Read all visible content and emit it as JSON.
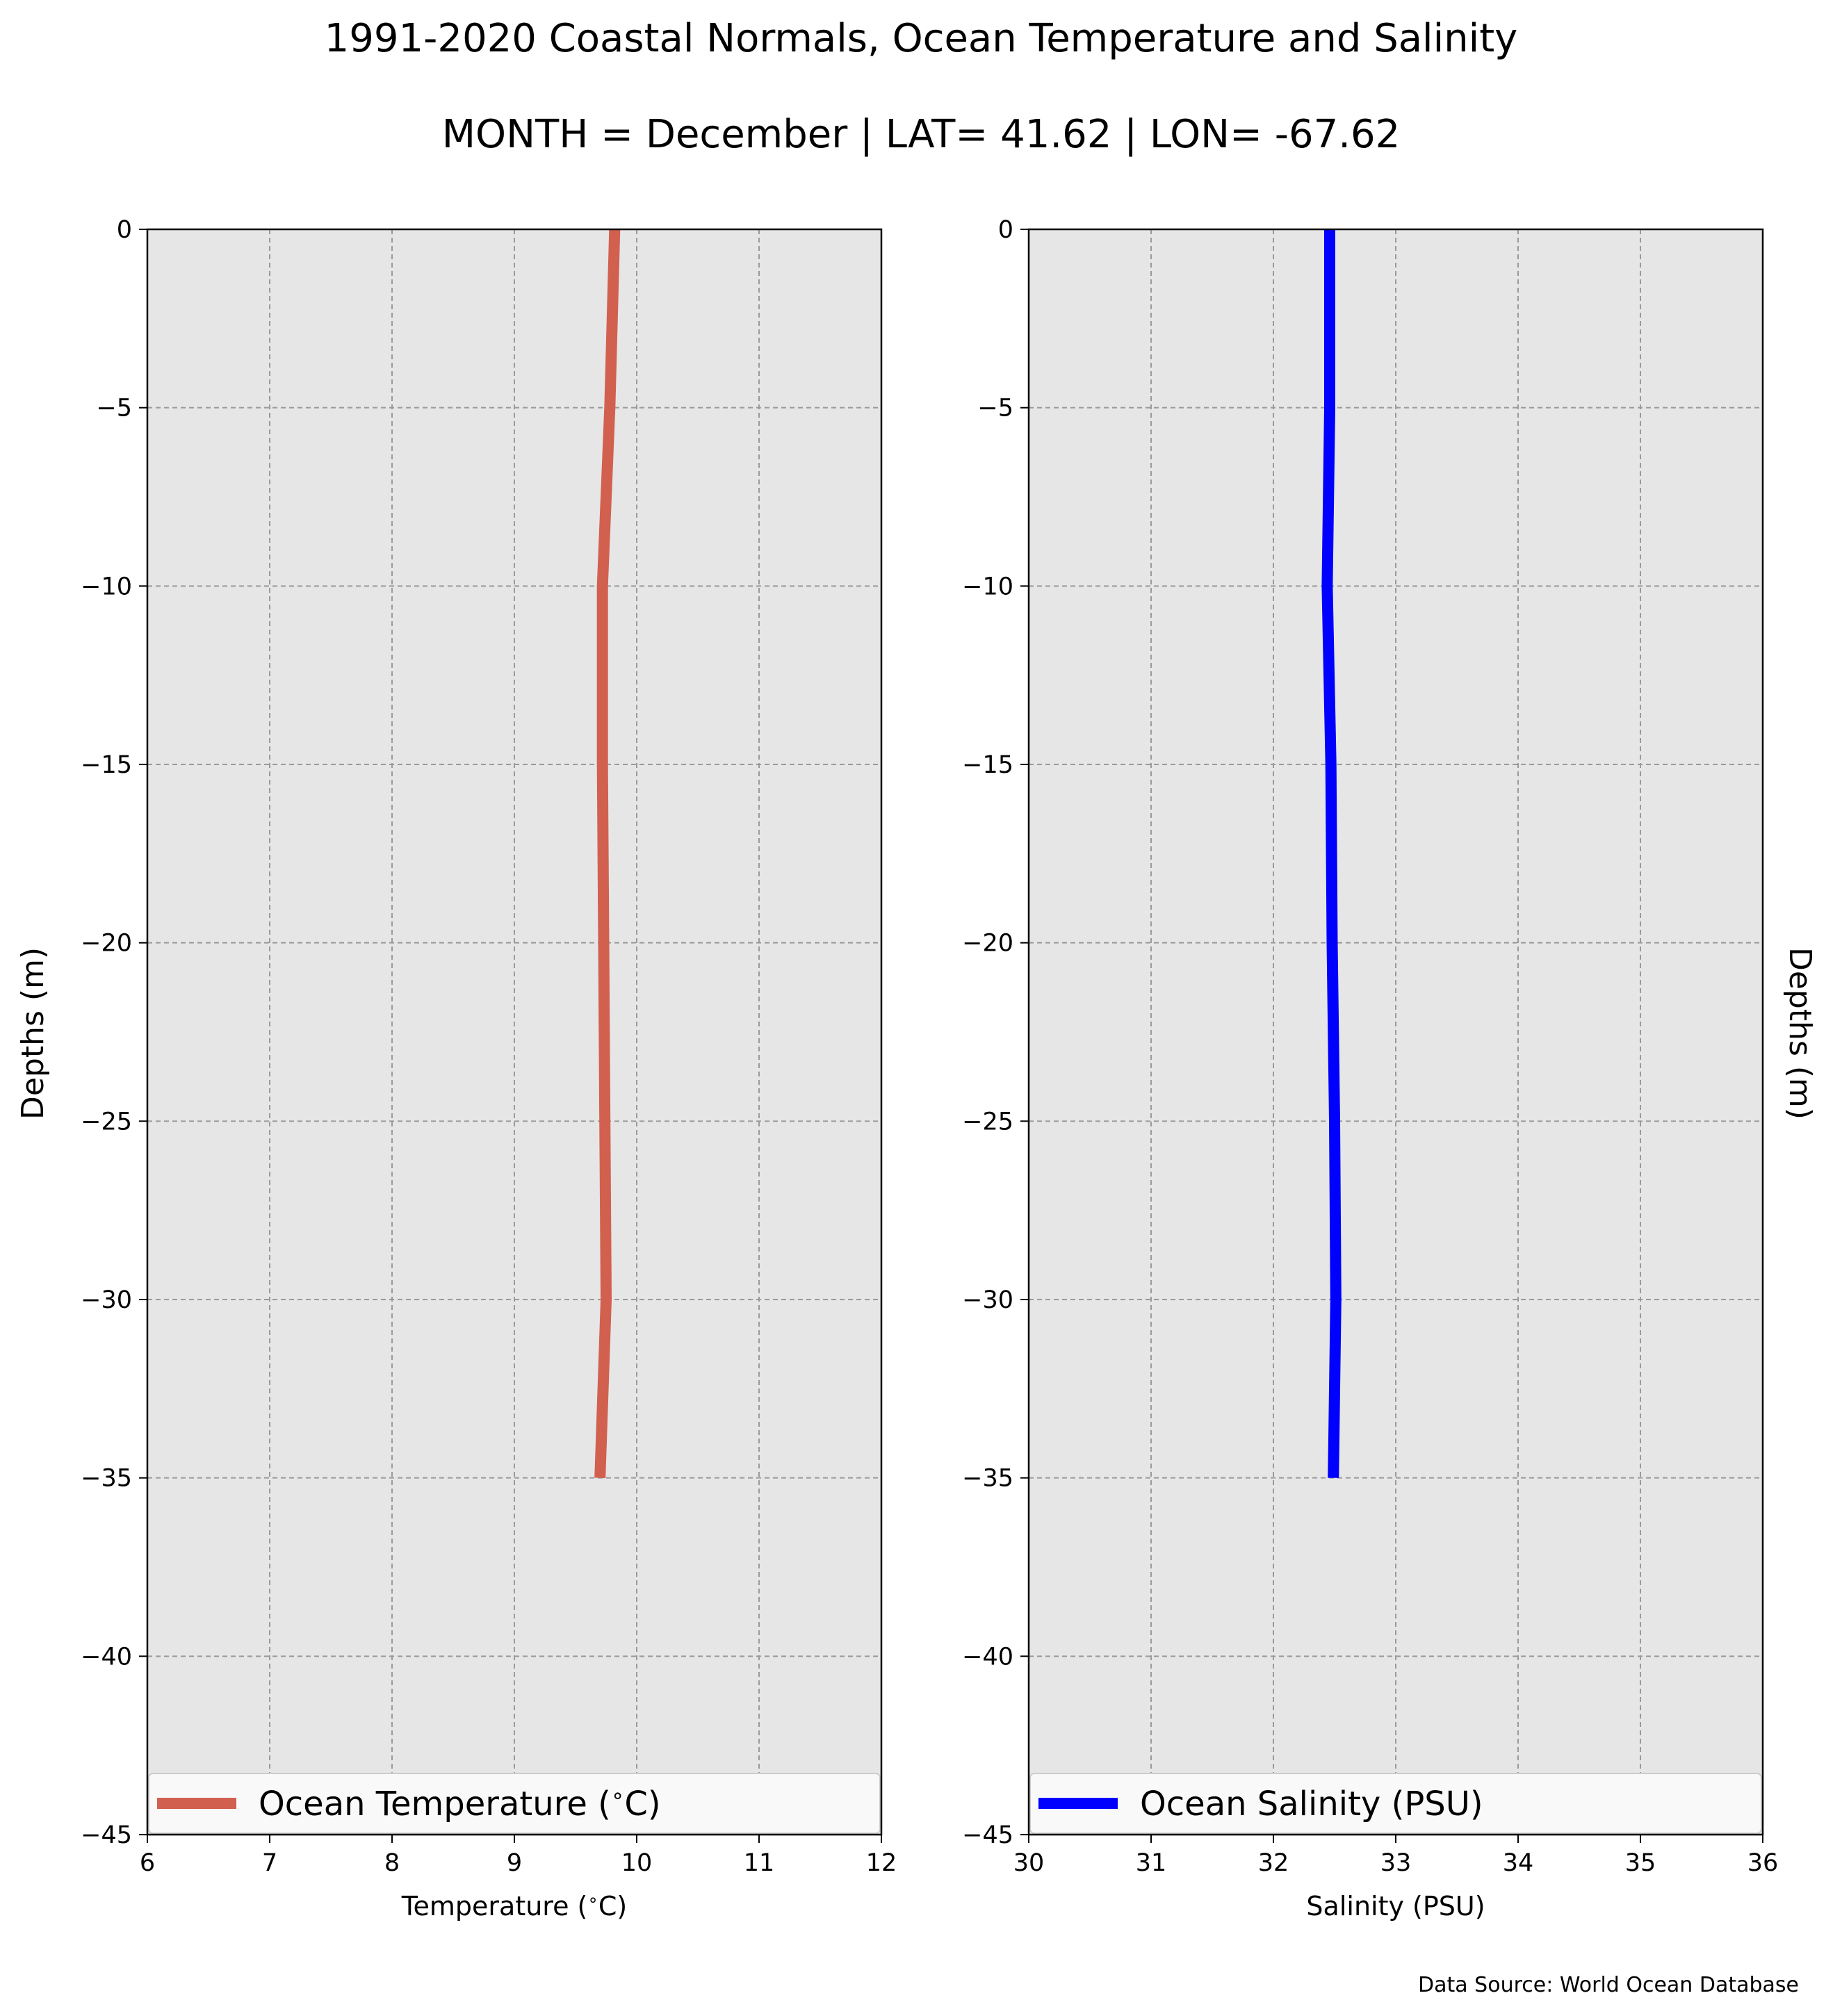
{
  "figure": {
    "title": "1991-2020 Coastal Normals, Ocean Temperature and Salinity",
    "subtitle": "MONTH = December | LAT= 41.62 | LON= -67.62",
    "ylabel": "Depths (m)",
    "source": "Data Source: World Ocean Database",
    "background_color": "#e6e6e6"
  },
  "chart_data": [
    {
      "type": "line",
      "xlabel": "Temperature ($^\\circ$C)",
      "ylabel": "Depths (m)",
      "xlim": [
        6,
        12
      ],
      "ylim": [
        -45,
        0
      ],
      "xticks": [
        6,
        7,
        8,
        9,
        10,
        11,
        12
      ],
      "yticks": [
        0,
        -5,
        -10,
        -15,
        -20,
        -25,
        -30,
        -35,
        -40,
        -45
      ],
      "grid": true,
      "legend_position": "lower-left",
      "series": [
        {
          "name": "Ocean Temperature ($^\\circ$C)",
          "color": "#d2604f",
          "x": [
            9.82,
            9.78,
            9.72,
            9.72,
            9.73,
            9.74,
            9.75,
            9.7
          ],
          "y": [
            0,
            -5,
            -10,
            -15,
            -20,
            -25,
            -30,
            -35
          ]
        }
      ]
    },
    {
      "type": "line",
      "xlabel": "Salinity (PSU)",
      "ylabel": "Depths (m)",
      "xlim": [
        30,
        36
      ],
      "ylim": [
        -45,
        0
      ],
      "xticks": [
        30,
        31,
        32,
        33,
        34,
        35,
        36
      ],
      "yticks": [
        0,
        -5,
        -10,
        -15,
        -20,
        -25,
        -30,
        -35,
        -40,
        -45
      ],
      "grid": true,
      "legend_position": "lower-left",
      "series": [
        {
          "name": "Ocean Salinity (PSU)",
          "color": "#0000ff",
          "x": [
            32.46,
            32.46,
            32.44,
            32.47,
            32.48,
            32.5,
            32.51,
            32.49
          ],
          "y": [
            0,
            -5,
            -10,
            -15,
            -20,
            -25,
            -30,
            -35
          ]
        }
      ]
    }
  ]
}
